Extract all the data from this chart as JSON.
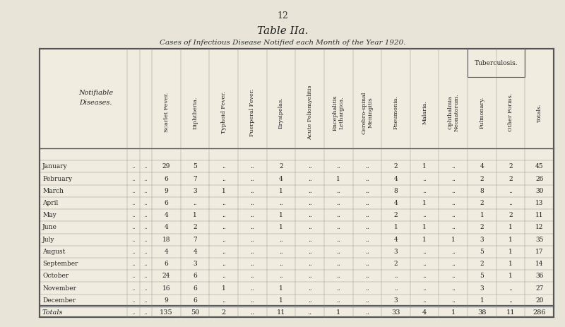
{
  "page_number": "12",
  "title": "Table IIa.",
  "subtitle": "Cases of Infectious Disease Notified each Month of the Year 1920.",
  "bg_color": "#e8e4d8",
  "table_bg": "#f0ece0",
  "col_headers": [
    "Scarlet Fever.",
    "Diphtheria.",
    "Typhoid Fever.",
    "Puerperal Fever.",
    "Erysipelas.",
    "Acute Poliomyelitis",
    "Encephalitis\nLethargica.",
    "Cerebro-spinal\nMeningitis",
    "Pneumonia.",
    "Malaria.",
    "Ophthalmia\nNeonatorum.",
    "Pulmonary.",
    "Other Forms.",
    "Totals."
  ],
  "row_labels": [
    "January",
    "February",
    "March",
    "April",
    "May",
    "June",
    "July",
    "August",
    "September",
    "October",
    "November",
    "December"
  ],
  "data": [
    [
      29,
      5,
      "..",
      "..",
      2,
      "..",
      "..",
      "..",
      2,
      1,
      "..",
      4,
      2,
      45
    ],
    [
      6,
      7,
      "..",
      "..",
      4,
      "..",
      1,
      "..",
      4,
      "..",
      "..",
      2,
      2,
      26
    ],
    [
      9,
      3,
      1,
      "..",
      1,
      "..",
      "..",
      "..",
      8,
      "..",
      "..",
      8,
      "..",
      30
    ],
    [
      6,
      "..",
      "..",
      "..",
      "..",
      "..",
      "..",
      "..",
      4,
      1,
      "..",
      2,
      "..",
      13
    ],
    [
      4,
      1,
      "..",
      "..",
      1,
      "..",
      "..",
      "..",
      2,
      "..",
      "..",
      1,
      2,
      11
    ],
    [
      4,
      2,
      "..",
      "..",
      1,
      "..",
      "..",
      "..",
      1,
      1,
      "..",
      2,
      1,
      12
    ],
    [
      18,
      7,
      "..",
      "..",
      "..",
      "..",
      "..",
      "..",
      4,
      1,
      1,
      3,
      1,
      35
    ],
    [
      4,
      4,
      "..",
      "..",
      "..",
      "..",
      "..",
      "..",
      3,
      "..",
      "..",
      5,
      1,
      17
    ],
    [
      6,
      3,
      "..",
      "..",
      "..",
      "..",
      "..",
      "..",
      2,
      "..",
      "..",
      2,
      1,
      14
    ],
    [
      24,
      6,
      "..",
      "..",
      "..",
      "..",
      "..",
      "..",
      "..",
      "..",
      "..",
      5,
      1,
      36
    ],
    [
      16,
      6,
      1,
      "..",
      1,
      "..",
      "..",
      "..",
      "..",
      "..",
      "..",
      3,
      "..",
      27
    ],
    [
      9,
      6,
      "..",
      "..",
      1,
      "..",
      "..",
      "..",
      3,
      "..",
      "..",
      1,
      "..",
      20
    ]
  ],
  "totals": [
    135,
    50,
    2,
    "..",
    11,
    "..",
    1,
    "..",
    33,
    4,
    1,
    38,
    11,
    286
  ]
}
